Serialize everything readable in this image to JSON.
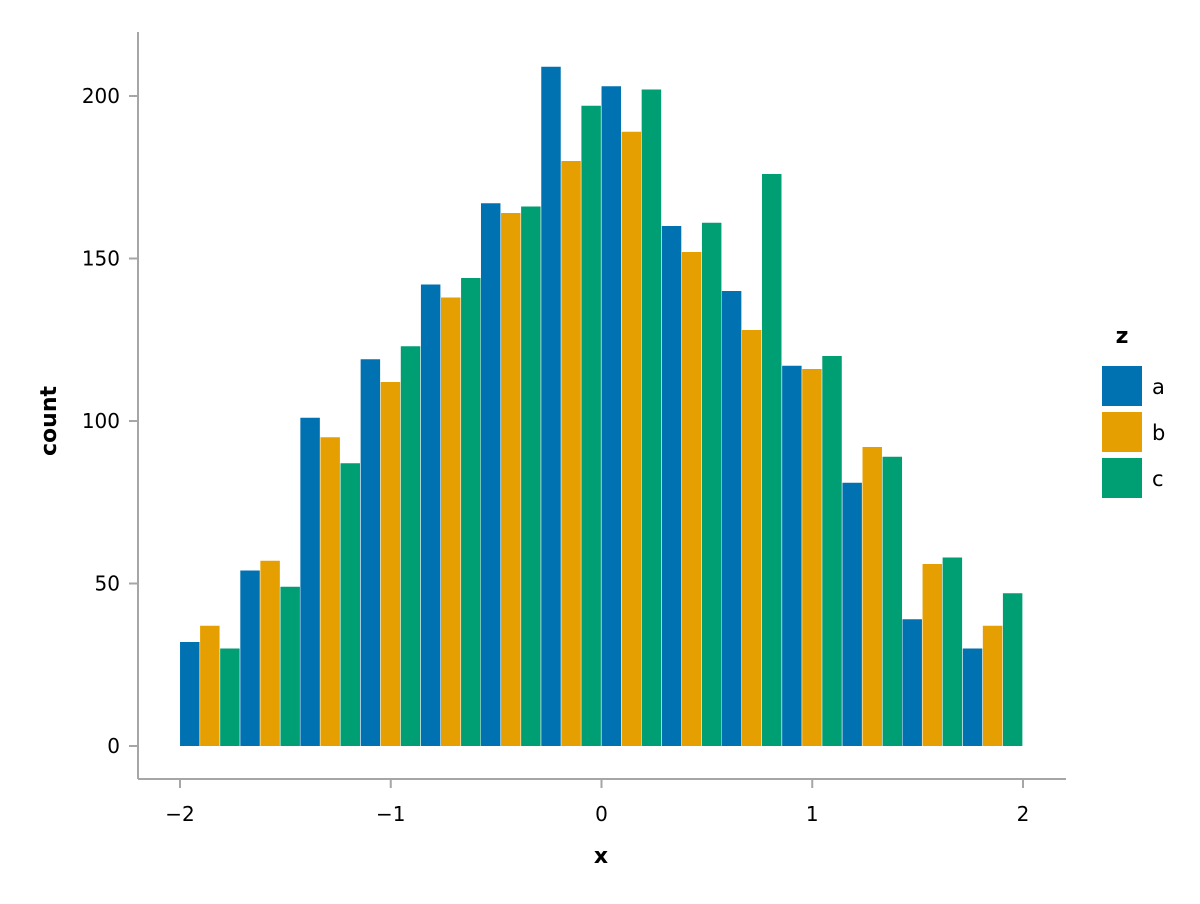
{
  "chart_data": {
    "type": "bar",
    "title": "",
    "xlabel": "x",
    "ylabel": "count",
    "xlim": [
      -2.2,
      2.2
    ],
    "ylim": [
      -10,
      220
    ],
    "x_ticks": [
      "−2",
      "−1",
      "0",
      "1",
      "2"
    ],
    "x_tick_values": [
      -2,
      -1,
      0,
      1,
      2
    ],
    "y_ticks": [
      "0",
      "50",
      "100",
      "150",
      "200"
    ],
    "y_tick_values": [
      0,
      50,
      100,
      150,
      200
    ],
    "grid": false,
    "legend": {
      "title": "z",
      "placement": "right"
    },
    "bin_centers": [
      -1.857,
      -1.571,
      -1.286,
      -1.0,
      -0.714,
      -0.429,
      -0.143,
      0.143,
      0.429,
      0.714,
      1.0,
      1.286,
      1.571,
      1.857
    ],
    "bin_width": 0.2857,
    "series": [
      {
        "name": "a",
        "color": "#0072b2",
        "values": [
          32,
          54,
          101,
          119,
          142,
          167,
          209,
          203,
          160,
          140,
          117,
          81,
          39,
          30
        ]
      },
      {
        "name": "b",
        "color": "#e69f00",
        "values": [
          37,
          57,
          95,
          112,
          138,
          164,
          180,
          189,
          152,
          128,
          116,
          92,
          56,
          37
        ]
      },
      {
        "name": "c",
        "color": "#009e73",
        "values": [
          30,
          49,
          87,
          123,
          144,
          166,
          197,
          202,
          161,
          176,
          120,
          89,
          58,
          47
        ]
      }
    ]
  }
}
